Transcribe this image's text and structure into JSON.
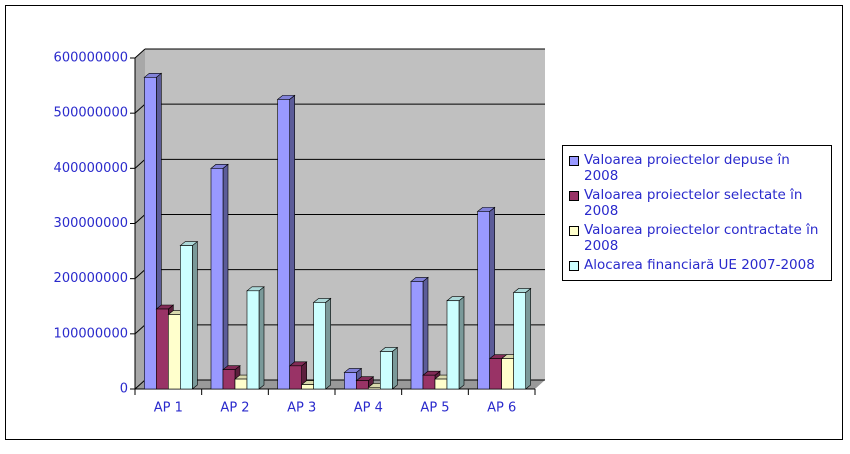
{
  "chart_data": {
    "type": "bar",
    "categories": [
      "AP 1",
      "AP 2",
      "AP 3",
      "AP 4",
      "AP 5",
      "AP 6"
    ],
    "series": [
      {
        "name": "Valoarea proiectelor depuse în 2008",
        "color": "#9999ff",
        "values": [
          565000000,
          400000000,
          525000000,
          30000000,
          195000000,
          322000000
        ]
      },
      {
        "name": "Valoarea proiectelor selectate în 2008",
        "color": "#993366",
        "values": [
          145000000,
          35000000,
          42000000,
          15000000,
          25000000,
          55000000
        ]
      },
      {
        "name": "Valoarea proiectelor contractate în 2008",
        "color": "#ffffcc",
        "values": [
          135000000,
          18000000,
          8000000,
          3000000,
          18000000,
          55000000
        ]
      },
      {
        "name": "Alocarea financiară UE 2007-2008",
        "color": "#ccffff",
        "values": [
          260000000,
          178000000,
          157000000,
          68000000,
          160000000,
          175000000
        ]
      }
    ],
    "ylim": [
      0,
      600000000
    ],
    "yticks": [
      0,
      100000000,
      200000000,
      300000000,
      400000000,
      500000000,
      600000000
    ],
    "grid": true,
    "legend": "right"
  }
}
